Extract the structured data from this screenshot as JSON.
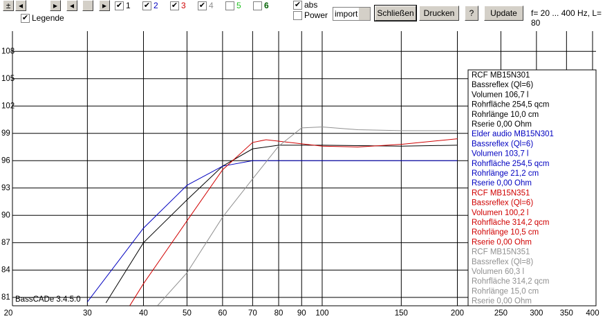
{
  "toolbar": {
    "series_toggles": [
      {
        "label": "1",
        "color": "#000000",
        "checked": true
      },
      {
        "label": "2",
        "color": "#0000c0",
        "checked": true
      },
      {
        "label": "3",
        "color": "#d00000",
        "checked": true
      },
      {
        "label": "4",
        "color": "#909090",
        "checked": true
      },
      {
        "label": "5",
        "color": "#20c020",
        "checked": false
      },
      {
        "label": "6",
        "color": "#006000",
        "checked": false
      }
    ],
    "legend_toggle": {
      "label": "Legende",
      "checked": true
    },
    "abs_toggle": {
      "label": "abs",
      "checked": true
    },
    "power_toggle": {
      "label": "Power",
      "checked": false
    },
    "select": "import",
    "buttons": [
      "Schließen",
      "Drucken",
      "?",
      "Update"
    ],
    "info": "f= 20 ... 400 Hz, L= 80"
  },
  "chart_data": {
    "type": "line",
    "version_label": "BassCADe 3.4.5.0",
    "xscale": "log",
    "xlim": [
      20,
      400
    ],
    "xticks": [
      20,
      30,
      40,
      50,
      60,
      70,
      80,
      90,
      100,
      150,
      200,
      250,
      300,
      350,
      400
    ],
    "ylim": [
      80,
      110
    ],
    "yticks": [
      81,
      84,
      87,
      90,
      93,
      96,
      99,
      102,
      105,
      108
    ],
    "grid": true,
    "series": [
      {
        "name": "RCF MB15N301",
        "color": "#000000",
        "legend_lines": [
          "Bassreflex (Ql=6)",
          "Volumen 106,7 l",
          "Rohrfläche 254,5 qcm",
          "Rohrlänge 10,0 cm",
          "Rserie 0,00 Ohm"
        ],
        "x": [
          33,
          40,
          50,
          60,
          70,
          80,
          100,
          150,
          200
        ],
        "values": [
          80.4,
          87,
          91.7,
          95.4,
          97.3,
          97.7,
          97.7,
          97.6,
          97.7
        ]
      },
      {
        "name": "Elder audio MB15N301",
        "color": "#0000c0",
        "legend_lines": [
          "Bassreflex (Ql=6)",
          "Volumen 103,7 l",
          "Rohrfläche 254,5 qcm",
          "Rohrlänge 21,2 cm",
          "Rserie 0,00 Ohm"
        ],
        "x": [
          30,
          40,
          50,
          60,
          70,
          100,
          150,
          200
        ],
        "values": [
          80.5,
          88.6,
          93.3,
          95.4,
          96,
          96,
          96,
          96
        ]
      },
      {
        "name": "RCF MB15N351",
        "color": "#d00000",
        "legend_lines": [
          "Bassreflex (Ql=6)",
          "Volumen 100,2 l",
          "Rohrfläche 314,2 qcm",
          "Rohrlänge 10,5 cm",
          "Rserie 0,00 Ohm"
        ],
        "x": [
          37.3,
          40,
          50,
          60,
          70,
          75,
          100,
          120,
          150,
          200
        ],
        "values": [
          80.1,
          82.5,
          89.4,
          95,
          98,
          98.3,
          97.6,
          97.5,
          97.8,
          98.4
        ]
      },
      {
        "name": "RCF MB15N351",
        "color": "#909090",
        "legend_lines": [
          "Bassreflex (Ql=8)",
          "Volumen 60,3 l",
          "Rohrfläche 314,2 qcm",
          "Rohrlänge 15,0 cm",
          "Rserie 0,00 Ohm"
        ],
        "x": [
          43,
          50,
          60,
          70,
          80,
          90,
          100,
          120,
          150,
          200
        ],
        "values": [
          80.1,
          83.7,
          89.8,
          94,
          97.6,
          99.6,
          99.7,
          99.4,
          99.3,
          99.3
        ]
      }
    ]
  }
}
